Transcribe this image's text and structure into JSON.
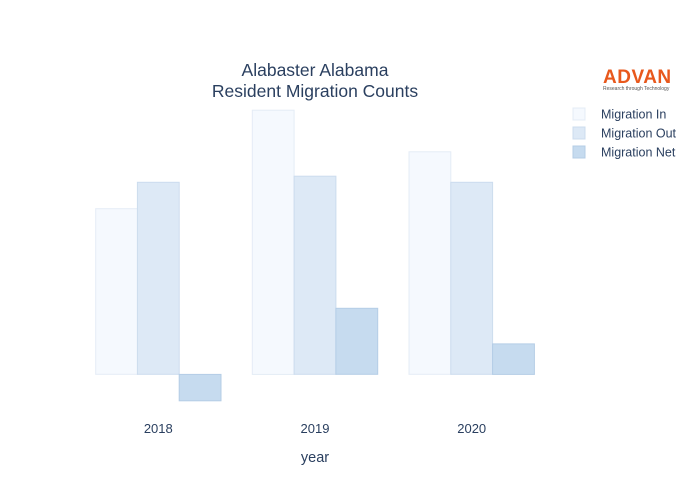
{
  "chart_data": {
    "type": "bar",
    "title": "Alabaster Alabama",
    "subtitle": "Resident Migration Counts",
    "xlabel": "year",
    "ylabel": "",
    "categories": [
      "2018",
      "2019",
      "2020"
    ],
    "series": [
      {
        "name": "Migration In",
        "values": [
          1630,
          2600,
          2190
        ],
        "color": "#f5f9fe",
        "stroke": "#e4ecf6"
      },
      {
        "name": "Migration Out",
        "values": [
          1890,
          1950,
          1890
        ],
        "color": "#dde9f6",
        "stroke": "#ccdcee"
      },
      {
        "name": "Migration Net",
        "values": [
          -260,
          650,
          300
        ],
        "color": "#c6dbef",
        "stroke": "#b4cde6"
      }
    ],
    "ylim": [
      -400,
      2700
    ],
    "grid": false,
    "show_yaxis": false,
    "legend": "top-right"
  },
  "logo": {
    "name": "ADVAN",
    "tagline": "Research through Technology"
  }
}
